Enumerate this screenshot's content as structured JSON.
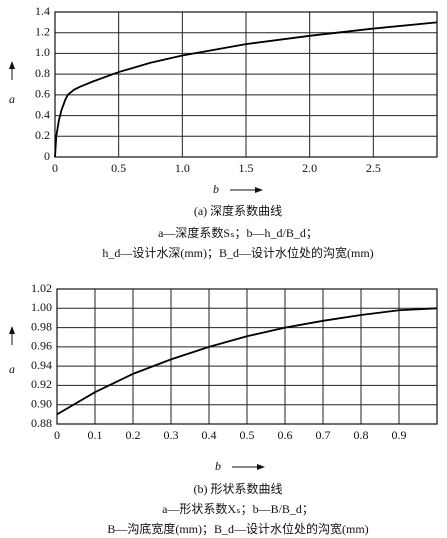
{
  "chart_data": [
    {
      "type": "line",
      "xlabel": "b",
      "ylabel": "a",
      "x": [
        0,
        0.01,
        0.03,
        0.05,
        0.08,
        0.1,
        0.15,
        0.2,
        0.3,
        0.5,
        0.75,
        1.0,
        1.5,
        2.0,
        2.5,
        3.0
      ],
      "series": [
        {
          "color": "#000000",
          "values": [
            0,
            0.2,
            0.35,
            0.45,
            0.55,
            0.6,
            0.65,
            0.68,
            0.73,
            0.82,
            0.91,
            0.98,
            1.09,
            1.17,
            1.24,
            1.3
          ]
        }
      ],
      "xlim": [
        0,
        3
      ],
      "ylim": [
        0,
        1.4
      ],
      "xticks": [
        0,
        0.5,
        {
          "value": 1,
          "label": "1.0"
        },
        1.5,
        {
          "value": 2,
          "label": "2.0"
        },
        2.5
      ],
      "yticks": [
        0,
        0.2,
        0.4,
        0.6,
        0.8,
        {
          "value": 1,
          "label": "1.0"
        },
        1.2,
        1.4
      ],
      "grid": true,
      "caption": [
        "(a) 深度系数曲线",
        "a—深度系数Sₛ；b—h_d/B_d；",
        "h_d—设计水深(mm)；B_d—设计水位处的沟宽(mm)"
      ]
    },
    {
      "type": "line",
      "xlabel": "b",
      "ylabel": "a",
      "x": [
        0,
        0.1,
        0.2,
        0.3,
        0.4,
        0.5,
        0.6,
        0.7,
        0.8,
        0.9,
        1.0
      ],
      "series": [
        {
          "color": "#000000",
          "values": [
            0.89,
            0.913,
            0.932,
            0.947,
            0.96,
            0.971,
            0.98,
            0.987,
            0.993,
            0.998,
            1.0
          ]
        }
      ],
      "xlim": [
        0,
        1
      ],
      "ylim": [
        0.88,
        1.02
      ],
      "xticks": [
        0,
        0.1,
        0.2,
        0.3,
        0.4,
        0.5,
        0.6,
        0.7,
        0.8,
        0.9
      ],
      "yticks": [
        0.88,
        {
          "value": 0.9,
          "label": "0.90"
        },
        0.92,
        0.94,
        0.96,
        0.98,
        {
          "value": 1,
          "label": "1.00"
        },
        1.02
      ],
      "grid": true,
      "caption": [
        "(b) 形状系数曲线",
        "a—形状系数Xₛ；b—B/B_d；",
        "B—沟底宽度(mm)；B_d—设计水位处的沟宽(mm)"
      ]
    }
  ]
}
